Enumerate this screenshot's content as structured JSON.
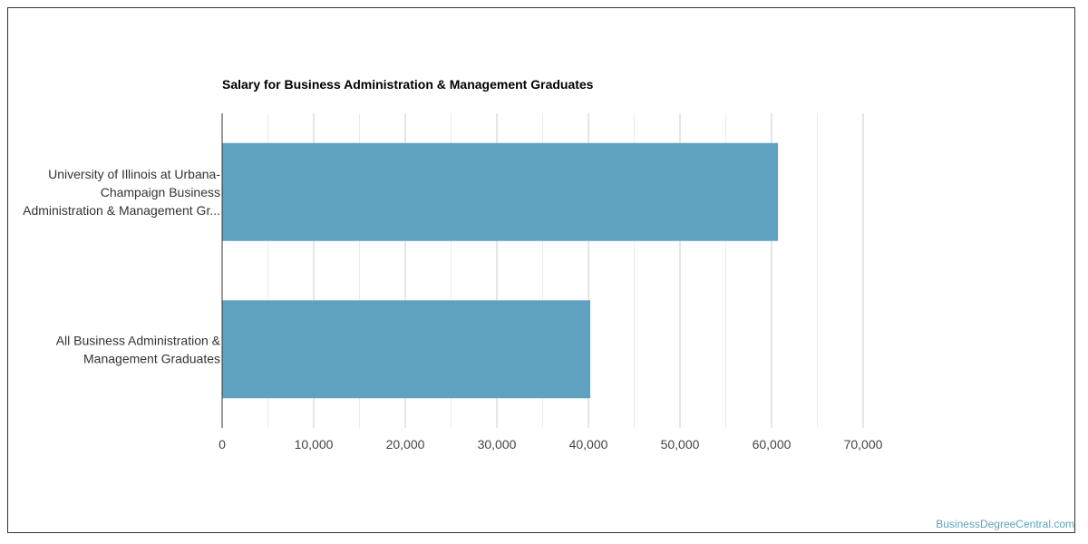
{
  "watermark": "BusinessDegreeCentral.com",
  "chart_data": {
    "type": "bar",
    "orientation": "horizontal",
    "title": "Salary for Business Administration & Management Graduates",
    "categories": [
      [
        "University of Illinois at Urbana-",
        "Champaign Business",
        "Administration & Management Gr..."
      ],
      [
        "All Business Administration &",
        "Management Graduates"
      ]
    ],
    "values": [
      60700,
      40200
    ],
    "xlim": [
      0,
      70000
    ],
    "xticks": [
      0,
      10000,
      20000,
      30000,
      40000,
      50000,
      60000,
      70000
    ],
    "xtick_labels": [
      "0",
      "10,000",
      "20,000",
      "30,000",
      "40,000",
      "50,000",
      "60,000",
      "70,000"
    ],
    "xlabel": "",
    "ylabel": "",
    "grid": true,
    "legend": "none",
    "bar_color": "#5ea2bf"
  }
}
